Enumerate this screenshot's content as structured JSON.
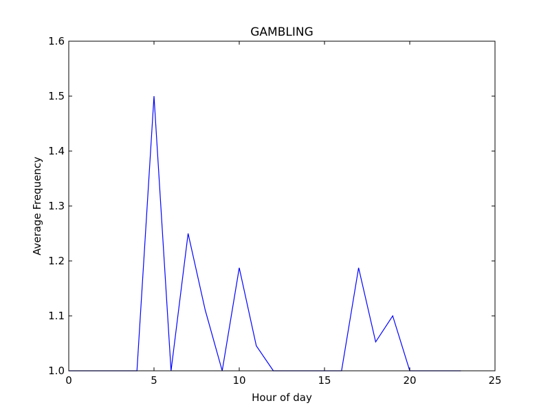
{
  "chart_data": {
    "type": "line",
    "title": "GAMBLING",
    "xlabel": "Hour of day",
    "ylabel": "Average Frequency",
    "xlim": [
      0,
      25
    ],
    "ylim": [
      1.0,
      1.6
    ],
    "xticks": [
      0,
      5,
      10,
      15,
      20,
      25
    ],
    "yticks": [
      1.0,
      1.1,
      1.2,
      1.3,
      1.4,
      1.5,
      1.6
    ],
    "grid": false,
    "line_color": "#0000ff",
    "series": [
      {
        "x": [
          0,
          1,
          2,
          3,
          4,
          5,
          6,
          7,
          8,
          9,
          10,
          11,
          12,
          13,
          14,
          15,
          16,
          17,
          18,
          19,
          20,
          21,
          22,
          23
        ],
        "y": [
          1.0,
          1.0,
          1.0,
          1.0,
          1.0,
          1.5,
          1.0,
          1.25,
          1.111,
          1.0,
          1.1875,
          1.0455,
          1.0,
          1.0,
          1.0,
          1.0,
          1.0,
          1.1875,
          1.0526,
          1.1,
          1.0,
          1.0,
          1.0,
          1.0
        ]
      }
    ]
  }
}
